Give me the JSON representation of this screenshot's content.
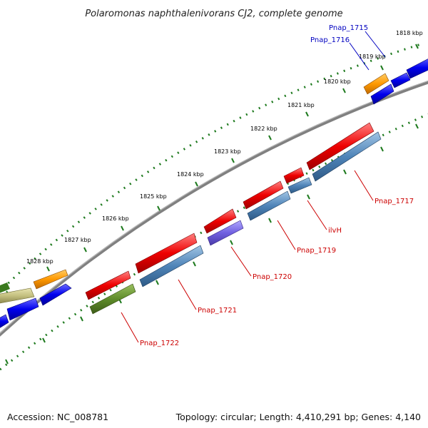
{
  "title": "Polaromonas naphthalenivorans CJ2, complete genome",
  "footer": {
    "accession": "Accession: NC_008781",
    "topology": "Topology: circular; Length: 4,410,291 bp; Genes: 4,140"
  },
  "scale_labels": [
    "1818 kbp",
    "1819 kbp",
    "1820 kbp",
    "1821 kbp",
    "1822 kbp",
    "1823 kbp",
    "1824 kbp",
    "1825 kbp",
    "1826 kbp",
    "1827 kbp",
    "1828 kbp"
  ],
  "gene_labels": [
    {
      "text": "Pnap_1715",
      "color": "#0000c0"
    },
    {
      "text": "Pnap_1716",
      "color": "#0000c0"
    },
    {
      "text": "Pnap_1717",
      "color": "#cc0000"
    },
    {
      "text": "ilvH",
      "color": "#cc0000"
    },
    {
      "text": "Pnap_1719",
      "color": "#cc0000"
    },
    {
      "text": "Pnap_1720",
      "color": "#cc0000"
    },
    {
      "text": "Pnap_1721",
      "color": "#cc0000"
    },
    {
      "text": "Pnap_1722",
      "color": "#cc0000"
    }
  ],
  "colors": {
    "backbone": "#808080",
    "ticks": "#1e7a1e",
    "label_line_red": "#cc0000",
    "label_line_blue": "#0000c0"
  }
}
